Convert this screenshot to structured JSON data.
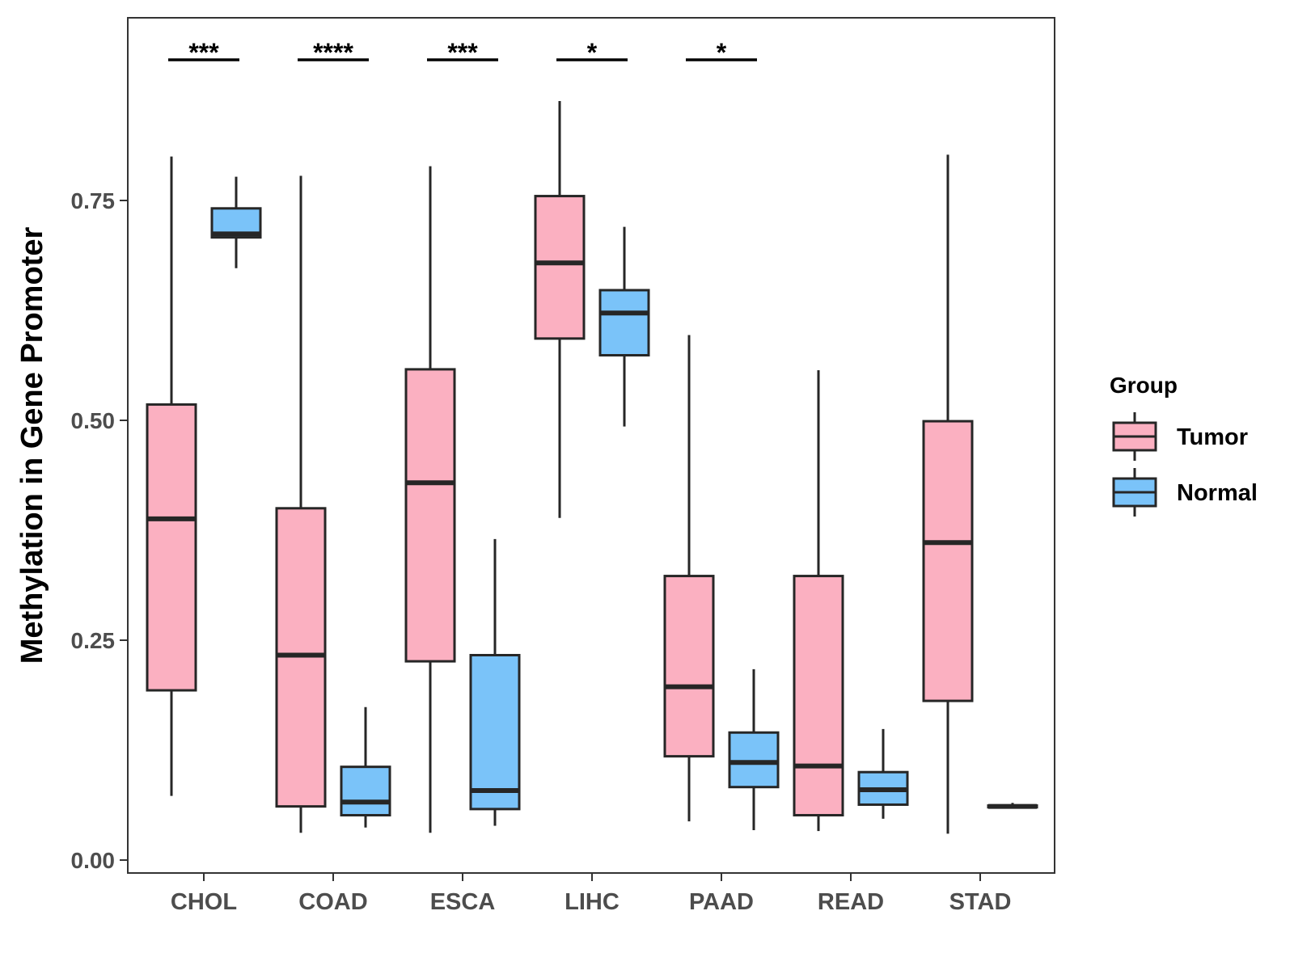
{
  "chart_data": {
    "type": "boxplot",
    "title": "",
    "xlabel": "",
    "ylabel": "Methylation in Gene Promoter",
    "ylim": [
      -0.015,
      0.955
    ],
    "yticks": [
      "0.00",
      "0.25",
      "0.50",
      "0.75"
    ],
    "yticks_values": [
      0,
      0.25,
      0.5,
      0.75
    ],
    "categories": [
      "CHOL",
      "COAD",
      "ESCA",
      "LIHC",
      "PAAD",
      "READ",
      "STAD"
    ],
    "legend": {
      "title": "Group",
      "position": "right",
      "entries": [
        {
          "label": "Tumor",
          "color": "#FBB0C1"
        },
        {
          "label": "Normal",
          "color": "#7AC3F9"
        }
      ]
    },
    "series": [
      {
        "name": "Tumor",
        "color": "#FBB0C1",
        "boxes": [
          {
            "category": "CHOL",
            "min": 0.073,
            "q1": 0.193,
            "median": 0.388,
            "q3": 0.518,
            "max": 0.8
          },
          {
            "category": "COAD",
            "min": 0.031,
            "q1": 0.061,
            "median": 0.233,
            "q3": 0.4,
            "max": 0.778
          },
          {
            "category": "ESCA",
            "min": 0.031,
            "q1": 0.226,
            "median": 0.429,
            "q3": 0.558,
            "max": 0.789
          },
          {
            "category": "LIHC",
            "min": 0.389,
            "q1": 0.593,
            "median": 0.679,
            "q3": 0.755,
            "max": 0.863
          },
          {
            "category": "PAAD",
            "min": 0.044,
            "q1": 0.118,
            "median": 0.197,
            "q3": 0.323,
            "max": 0.597
          },
          {
            "category": "READ",
            "min": 0.033,
            "q1": 0.051,
            "median": 0.107,
            "q3": 0.323,
            "max": 0.557
          },
          {
            "category": "STAD",
            "min": 0.03,
            "q1": 0.181,
            "median": 0.361,
            "q3": 0.499,
            "max": 0.802
          }
        ]
      },
      {
        "name": "Normal",
        "color": "#7AC3F9",
        "boxes": [
          {
            "category": "CHOL",
            "min": 0.673,
            "q1": 0.708,
            "median": 0.712,
            "q3": 0.741,
            "max": 0.777
          },
          {
            "category": "COAD",
            "min": 0.037,
            "q1": 0.051,
            "median": 0.066,
            "q3": 0.106,
            "max": 0.174
          },
          {
            "category": "ESCA",
            "min": 0.039,
            "q1": 0.058,
            "median": 0.079,
            "q3": 0.233,
            "max": 0.365
          },
          {
            "category": "LIHC",
            "min": 0.493,
            "q1": 0.574,
            "median": 0.622,
            "q3": 0.648,
            "max": 0.72
          },
          {
            "category": "PAAD",
            "min": 0.034,
            "q1": 0.083,
            "median": 0.111,
            "q3": 0.145,
            "max": 0.217
          },
          {
            "category": "READ",
            "min": 0.047,
            "q1": 0.063,
            "median": 0.08,
            "q3": 0.1,
            "max": 0.149
          },
          {
            "category": "STAD",
            "min": 0.06,
            "q1": 0.06,
            "median": 0.061,
            "q3": 0.062,
            "max": 0.065
          }
        ]
      }
    ],
    "annotations": [
      {
        "category": "CHOL",
        "label": "***"
      },
      {
        "category": "COAD",
        "label": "****"
      },
      {
        "category": "ESCA",
        "label": "***"
      },
      {
        "category": "LIHC",
        "label": "*"
      },
      {
        "category": "PAAD",
        "label": "*"
      }
    ],
    "grid": false
  }
}
